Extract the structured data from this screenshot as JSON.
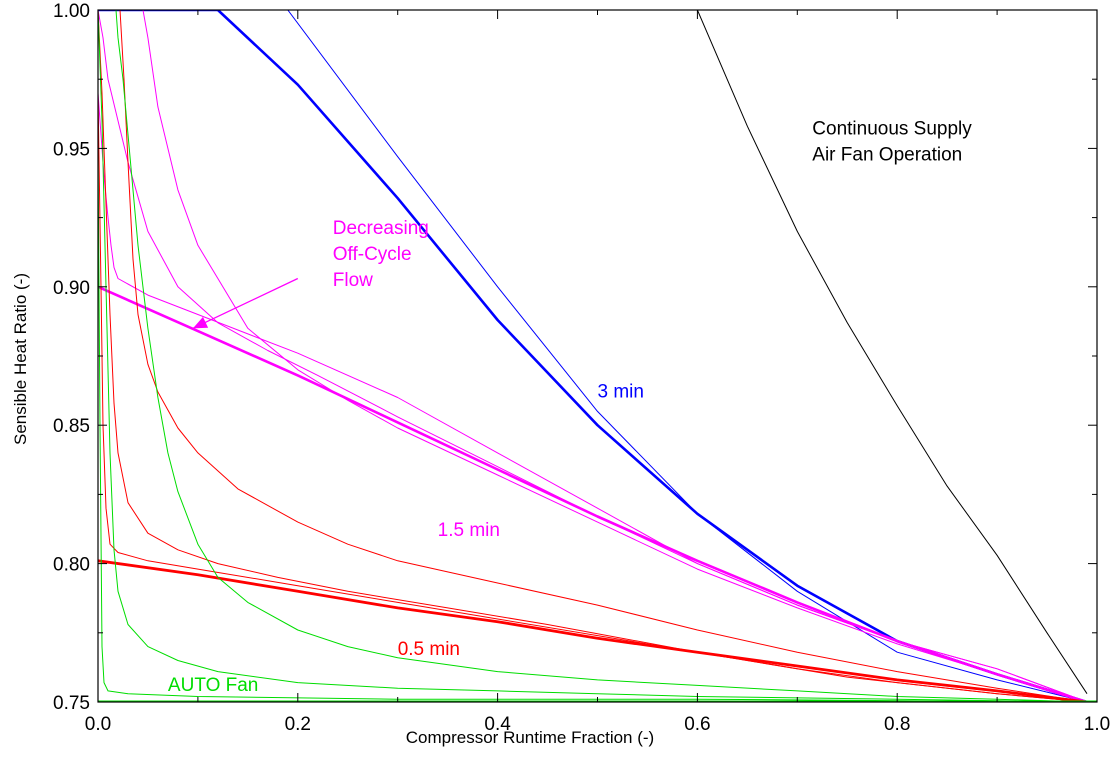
{
  "chart_data": {
    "type": "line",
    "title": "",
    "xlabel": "Compressor  Runtime Fraction (-)",
    "ylabel": "Sensible Heat Ratio (-)",
    "xlim": [
      0.0,
      1.0
    ],
    "ylim": [
      0.75,
      1.0
    ],
    "xticks": [
      "0.0",
      "0.2",
      "0.4",
      "0.6",
      "0.8",
      "1.0"
    ],
    "yticks": [
      "0.75",
      "0.80",
      "0.85",
      "0.90",
      "0.95",
      "1.00"
    ],
    "grid": false,
    "colors": {
      "continuous": "#000000",
      "min3": "#0000ff",
      "min15": "#ff00ff",
      "min05": "#ff0000",
      "auto": "#00dd00"
    },
    "annotations": [
      {
        "id": "continuous",
        "lines": [
          "Continuous Supply",
          "Air Fan Operation"
        ],
        "color": "#000000",
        "x": 0.715,
        "y": 0.955
      },
      {
        "id": "decreasing",
        "lines": [
          "Decreasing",
          "Off-Cycle",
          "Flow"
        ],
        "color": "#ff00ff",
        "x": 0.235,
        "y": 0.919
      },
      {
        "id": "min3",
        "lines": [
          "3 min"
        ],
        "color": "#0000ff",
        "x": 0.5,
        "y": 0.86
      },
      {
        "id": "min15",
        "lines": [
          "1.5 min"
        ],
        "color": "#ff00ff",
        "x": 0.34,
        "y": 0.81
      },
      {
        "id": "min05",
        "lines": [
          "0.5 min"
        ],
        "color": "#ff0000",
        "x": 0.3,
        "y": 0.767
      },
      {
        "id": "auto",
        "lines": [
          "AUTO Fan"
        ],
        "color": "#00dd00",
        "x": 0.07,
        "y": 0.754
      }
    ],
    "arrow": {
      "from": [
        0.2,
        0.903
      ],
      "to": [
        0.095,
        0.885
      ],
      "color": "#ff00ff"
    },
    "series": [
      {
        "id": "continuous",
        "color": "#000000",
        "width": 1,
        "x": [
          0.6,
          0.65,
          0.7,
          0.75,
          0.8,
          0.85,
          0.9,
          0.95,
          0.99
        ],
        "y": [
          1.0,
          0.958,
          0.92,
          0.887,
          0.857,
          0.828,
          0.803,
          0.775,
          0.753
        ]
      },
      {
        "id": "min3-thin",
        "color": "#0000ff",
        "width": 1,
        "x": [
          0.0,
          0.19,
          0.3,
          0.4,
          0.5,
          0.6,
          0.7,
          0.8,
          0.9,
          0.99
        ],
        "y": [
          1.0,
          1.0,
          0.947,
          0.9,
          0.855,
          0.818,
          0.79,
          0.768,
          0.758,
          0.75
        ]
      },
      {
        "id": "min3-thick",
        "color": "#0000ff",
        "width": 2.6,
        "x": [
          0.0,
          0.12,
          0.2,
          0.3,
          0.4,
          0.5,
          0.6,
          0.7,
          0.8,
          0.9,
          0.99
        ],
        "y": [
          1.0,
          1.0,
          0.973,
          0.932,
          0.888,
          0.85,
          0.818,
          0.792,
          0.772,
          0.76,
          0.75
        ]
      },
      {
        "id": "min15-thin-a",
        "color": "#ff00ff",
        "width": 1,
        "x": [
          0.0,
          0.003,
          0.006,
          0.01,
          0.013,
          0.016,
          0.02,
          0.05,
          0.1,
          0.15,
          0.2,
          0.3,
          0.4,
          0.5,
          0.6,
          0.7,
          0.8,
          0.9,
          0.99
        ],
        "y": [
          0.97,
          0.955,
          0.94,
          0.925,
          0.915,
          0.907,
          0.903,
          0.897,
          0.89,
          0.883,
          0.876,
          0.86,
          0.84,
          0.82,
          0.8,
          0.785,
          0.772,
          0.762,
          0.75
        ]
      },
      {
        "id": "min15-thin-b",
        "color": "#ff00ff",
        "width": 1,
        "x": [
          0.0,
          0.005,
          0.01,
          0.02,
          0.03,
          0.05,
          0.08,
          0.12,
          0.17,
          0.22,
          0.3,
          0.4,
          0.5,
          0.6,
          0.7,
          0.8,
          0.9,
          0.99
        ],
        "y": [
          1.0,
          0.99,
          0.975,
          0.96,
          0.945,
          0.92,
          0.9,
          0.887,
          0.877,
          0.868,
          0.853,
          0.835,
          0.817,
          0.8,
          0.785,
          0.772,
          0.762,
          0.75
        ]
      },
      {
        "id": "min15-thin-c",
        "color": "#ff00ff",
        "width": 1,
        "x": [
          0.045,
          0.05,
          0.06,
          0.08,
          0.1,
          0.15,
          0.2,
          0.25,
          0.3,
          0.4,
          0.5,
          0.6,
          0.7,
          0.8,
          0.9,
          0.99
        ],
        "y": [
          1.0,
          0.99,
          0.965,
          0.935,
          0.915,
          0.885,
          0.87,
          0.859,
          0.849,
          0.832,
          0.815,
          0.798,
          0.784,
          0.771,
          0.76,
          0.75
        ]
      },
      {
        "id": "min15-thick",
        "color": "#ff00ff",
        "width": 2.6,
        "x": [
          0.0,
          0.1,
          0.2,
          0.3,
          0.4,
          0.5,
          0.6,
          0.7,
          0.8,
          0.9,
          0.99
        ],
        "y": [
          0.9,
          0.884,
          0.868,
          0.851,
          0.834,
          0.817,
          0.801,
          0.786,
          0.772,
          0.76,
          0.75
        ]
      },
      {
        "id": "min05-thin-a",
        "color": "#ff0000",
        "width": 1,
        "x": [
          0.0,
          0.003,
          0.005,
          0.008,
          0.012,
          0.02,
          0.05,
          0.1,
          0.2,
          0.3,
          0.4,
          0.5,
          0.6,
          0.7,
          0.8,
          0.9,
          0.99
        ],
        "y": [
          0.97,
          0.9,
          0.85,
          0.82,
          0.807,
          0.804,
          0.801,
          0.798,
          0.792,
          0.786,
          0.78,
          0.774,
          0.768,
          0.762,
          0.757,
          0.753,
          0.75
        ]
      },
      {
        "id": "min05-thin-b",
        "color": "#ff0000",
        "width": 1,
        "x": [
          0.0,
          0.004,
          0.008,
          0.012,
          0.016,
          0.02,
          0.03,
          0.05,
          0.08,
          0.12,
          0.18,
          0.25,
          0.35,
          0.45,
          0.6,
          0.75,
          0.9,
          0.99
        ],
        "y": [
          1.0,
          0.97,
          0.93,
          0.89,
          0.858,
          0.84,
          0.822,
          0.811,
          0.805,
          0.8,
          0.795,
          0.79,
          0.784,
          0.778,
          0.768,
          0.759,
          0.753,
          0.75
        ]
      },
      {
        "id": "min05-thin-c",
        "color": "#ff0000",
        "width": 1,
        "x": [
          0.022,
          0.026,
          0.03,
          0.035,
          0.04,
          0.05,
          0.06,
          0.08,
          0.1,
          0.14,
          0.2,
          0.25,
          0.3,
          0.35,
          0.4,
          0.5,
          0.6,
          0.7,
          0.8,
          0.9,
          0.99
        ],
        "y": [
          1.0,
          0.975,
          0.945,
          0.91,
          0.89,
          0.872,
          0.862,
          0.849,
          0.84,
          0.827,
          0.815,
          0.807,
          0.801,
          0.797,
          0.793,
          0.785,
          0.776,
          0.768,
          0.761,
          0.755,
          0.75
        ]
      },
      {
        "id": "min05-thick",
        "color": "#ff0000",
        "width": 2.8,
        "x": [
          0.0,
          0.1,
          0.2,
          0.3,
          0.4,
          0.5,
          0.6,
          0.7,
          0.8,
          0.9,
          0.99
        ],
        "y": [
          0.801,
          0.796,
          0.79,
          0.784,
          0.779,
          0.773,
          0.768,
          0.763,
          0.758,
          0.754,
          0.75
        ]
      },
      {
        "id": "auto-a",
        "color": "#00dd00",
        "width": 1,
        "x": [
          0.0,
          0.002,
          0.004,
          0.006,
          0.01,
          0.03,
          0.1,
          0.3,
          0.6,
          0.99
        ],
        "y": [
          0.95,
          0.85,
          0.77,
          0.757,
          0.754,
          0.753,
          0.752,
          0.751,
          0.751,
          0.75
        ]
      },
      {
        "id": "auto-b",
        "color": "#00dd00",
        "width": 1,
        "x": [
          0.0,
          0.004,
          0.008,
          0.012,
          0.016,
          0.02,
          0.03,
          0.05,
          0.08,
          0.12,
          0.2,
          0.3,
          0.4,
          0.5,
          0.6,
          0.8,
          0.99
        ],
        "y": [
          1.0,
          0.96,
          0.9,
          0.84,
          0.805,
          0.79,
          0.778,
          0.77,
          0.765,
          0.761,
          0.757,
          0.755,
          0.754,
          0.753,
          0.752,
          0.751,
          0.75
        ]
      },
      {
        "id": "auto-c",
        "color": "#00dd00",
        "width": 1,
        "x": [
          0.018,
          0.02,
          0.025,
          0.03,
          0.035,
          0.04,
          0.05,
          0.06,
          0.07,
          0.08,
          0.1,
          0.12,
          0.15,
          0.2,
          0.25,
          0.3,
          0.4,
          0.5,
          0.6,
          0.7,
          0.8,
          0.9,
          0.99
        ],
        "y": [
          1.0,
          0.99,
          0.975,
          0.955,
          0.935,
          0.915,
          0.885,
          0.86,
          0.84,
          0.826,
          0.807,
          0.795,
          0.786,
          0.776,
          0.77,
          0.766,
          0.761,
          0.758,
          0.756,
          0.754,
          0.752,
          0.751,
          0.75
        ]
      },
      {
        "id": "auto-base",
        "color": "#00dd00",
        "width": 3,
        "x": [
          0.0,
          1.0
        ],
        "y": [
          0.75,
          0.75
        ]
      }
    ]
  }
}
